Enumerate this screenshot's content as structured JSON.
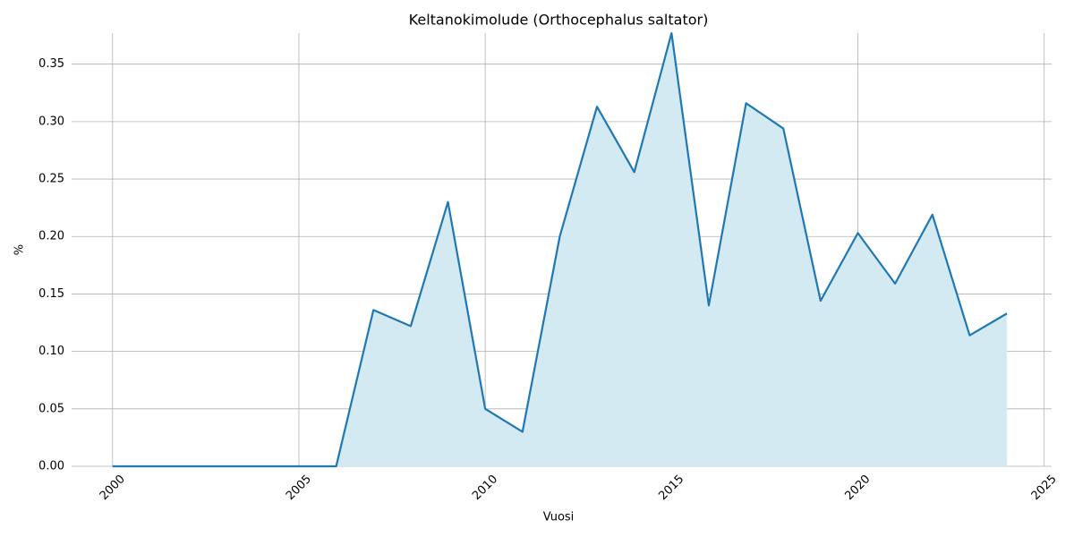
{
  "chart_data": {
    "type": "line",
    "title": "Keltanokimolude (Orthocephalus saltator)",
    "xlabel": "Vuosi",
    "ylabel": "%",
    "x": [
      2000,
      2001,
      2002,
      2003,
      2004,
      2005,
      2006,
      2007,
      2008,
      2009,
      2010,
      2011,
      2012,
      2013,
      2014,
      2015,
      2016,
      2017,
      2018,
      2019,
      2020,
      2021,
      2022,
      2023,
      2024
    ],
    "series": [
      {
        "color": "#1f77b4",
        "fill": "#d4eaf2",
        "values": [
          0,
          0,
          0,
          0,
          0,
          0,
          0,
          0.136,
          0.122,
          0.23,
          0.05,
          0.03,
          0.2,
          0.313,
          0.256,
          0.377,
          0.14,
          0.316,
          0.294,
          0.144,
          0.203,
          0.159,
          0.219,
          0.114,
          0.133
        ]
      }
    ],
    "xlim": [
      1998.9,
      2025.2
    ],
    "ylim": [
      0,
      0.377
    ],
    "xticks": [
      2000,
      2005,
      2010,
      2015,
      2020,
      2025
    ],
    "yticks": [
      {
        "value": 0,
        "label": "0.00"
      },
      {
        "value": 0.05,
        "label": "0.05"
      },
      {
        "value": 0.1,
        "label": "0.10"
      },
      {
        "value": 0.15,
        "label": "0.15"
      },
      {
        "value": 0.2,
        "label": "0.20"
      },
      {
        "value": 0.25,
        "label": "0.25"
      },
      {
        "value": 0.3,
        "label": "0.30"
      },
      {
        "value": 0.35,
        "label": "0.35"
      }
    ],
    "grid": true
  }
}
